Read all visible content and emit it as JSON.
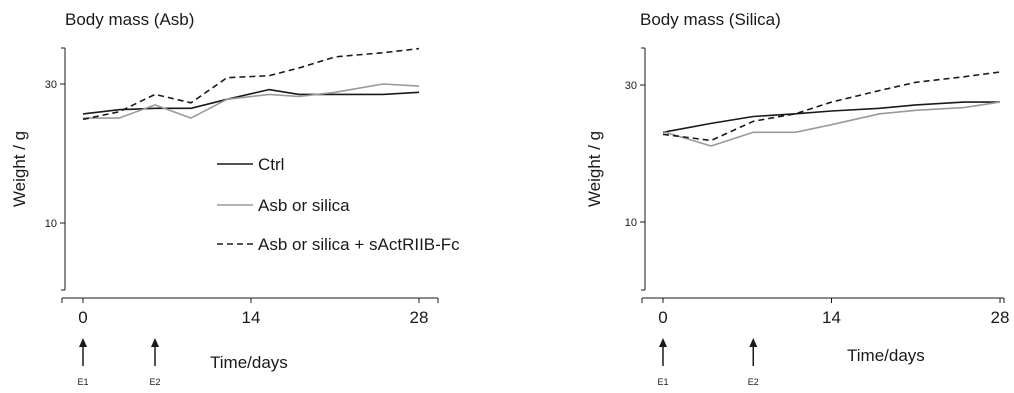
{
  "colors": {
    "ctrl": "#1a1a1a",
    "asb": "#9a9a9a",
    "treated": "#1a1a1a"
  },
  "chart_data": [
    {
      "type": "line",
      "title": "Body mass (Asb)",
      "ylabel": "Weight / g",
      "xlabel": "Time/days",
      "xlim": [
        0,
        28
      ],
      "ylim": [
        0,
        40
      ],
      "x_ticks": [
        0,
        14,
        28
      ],
      "y_ticks": [
        10,
        30
      ],
      "events": [
        {
          "label": "E1",
          "x": 0
        },
        {
          "label": "E2",
          "x": 6
        }
      ],
      "legend": {
        "placement": "center",
        "show": true
      },
      "series": [
        {
          "key": "ctrl",
          "name": "Ctrl",
          "style": "solid",
          "x": [
            0,
            3,
            6,
            9,
            12,
            15.5,
            18,
            21,
            25,
            28
          ],
          "y": [
            25.7,
            26.3,
            26.5,
            26.5,
            27.8,
            29.2,
            28.5,
            28.5,
            28.5,
            28.8
          ]
        },
        {
          "key": "asb",
          "name": "Asb or silica",
          "style": "solid",
          "x": [
            0,
            3,
            6,
            9,
            12,
            15.5,
            18,
            21,
            25,
            28
          ],
          "y": [
            25.1,
            25.1,
            27.0,
            25.1,
            27.8,
            28.5,
            28.2,
            28.8,
            30.0,
            29.7
          ]
        },
        {
          "key": "treated",
          "name": "Asb or silica + sActRIIB-Fc",
          "style": "dashed",
          "x": [
            0,
            3,
            6,
            9,
            12,
            15.5,
            18,
            21,
            25,
            28
          ],
          "y": [
            24.9,
            26.0,
            28.5,
            27.3,
            30.9,
            31.2,
            32.3,
            33.9,
            34.5,
            35.1
          ]
        }
      ]
    },
    {
      "type": "line",
      "title": "Body mass (Silica)",
      "ylabel": "Weight / g",
      "xlabel": "Time/days",
      "xlim": [
        0,
        28
      ],
      "ylim": [
        0,
        40
      ],
      "x_ticks": [
        0,
        14,
        28
      ],
      "y_ticks": [
        10,
        30
      ],
      "events": [
        {
          "label": "E1",
          "x": 0
        },
        {
          "label": "E2",
          "x": 7.5
        }
      ],
      "legend": {
        "show": false
      },
      "series": [
        {
          "key": "ctrl",
          "name": "Ctrl",
          "style": "solid",
          "x": [
            0,
            4,
            7.5,
            11,
            14,
            18,
            21,
            25,
            28
          ],
          "y": [
            23.1,
            24.4,
            25.4,
            25.8,
            26.2,
            26.6,
            27.1,
            27.5,
            27.5
          ]
        },
        {
          "key": "asb",
          "name": "Asb or silica",
          "style": "solid",
          "x": [
            0,
            4,
            7.5,
            11,
            14,
            18,
            21,
            25,
            28
          ],
          "y": [
            23.2,
            21.1,
            23.1,
            23.1,
            24.2,
            25.8,
            26.3,
            26.7,
            27.5
          ]
        },
        {
          "key": "treated",
          "name": "Asb or silica + sActRIIB-Fc",
          "style": "dashed",
          "x": [
            0,
            4,
            7.5,
            11,
            14,
            18,
            21,
            25,
            28
          ],
          "y": [
            22.8,
            21.9,
            24.7,
            25.8,
            27.5,
            29.2,
            30.4,
            31.2,
            31.9
          ]
        }
      ]
    }
  ]
}
